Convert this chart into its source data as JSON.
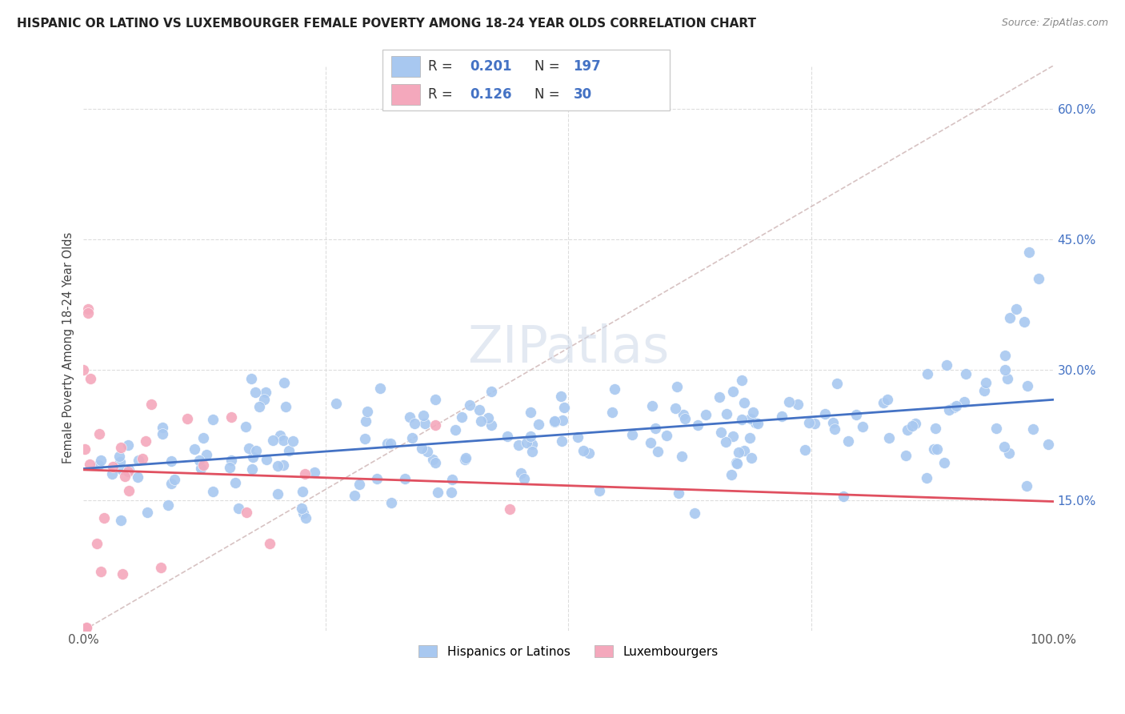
{
  "title": "HISPANIC OR LATINO VS LUXEMBOURGER FEMALE POVERTY AMONG 18-24 YEAR OLDS CORRELATION CHART",
  "source": "Source: ZipAtlas.com",
  "ylabel": "Female Poverty Among 18-24 Year Olds",
  "xlim": [
    0,
    1.0
  ],
  "ylim": [
    0,
    0.65
  ],
  "ytick_positions": [
    0.15,
    0.3,
    0.45,
    0.6
  ],
  "ytick_labels": [
    "15.0%",
    "30.0%",
    "45.0%",
    "60.0%"
  ],
  "blue_color": "#a8c8f0",
  "blue_line_color": "#4472c4",
  "pink_color": "#f4a8bc",
  "pink_line_color": "#e05060",
  "diag_line_color": "#d0b8b8",
  "r_blue": 0.201,
  "n_blue": 197,
  "r_pink": 0.126,
  "n_pink": 30,
  "legend_label_blue": "Hispanics or Latinos",
  "legend_label_pink": "Luxembourgers"
}
